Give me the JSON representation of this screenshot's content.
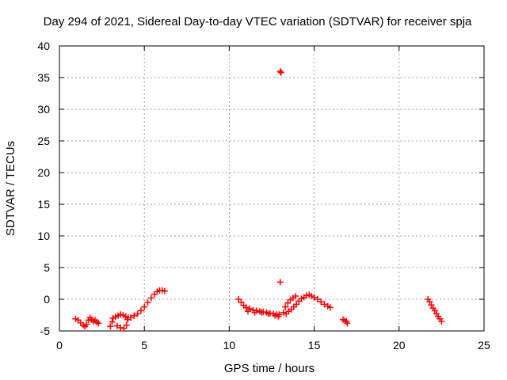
{
  "chart_data": {
    "type": "scatter",
    "title": "Day 294 of 2021, Sidereal Day-to-day VTEC variation (SDTVAR) for receiver spja",
    "xlabel": "GPS time / hours",
    "ylabel": "SDTVAR / TECUs",
    "xlim": [
      0,
      25
    ],
    "ylim": [
      -5,
      40
    ],
    "xticks": [
      "0",
      "5",
      "10",
      "15",
      "20",
      "25"
    ],
    "yticks": [
      "-5",
      "0",
      "5",
      "10",
      "15",
      "20",
      "25",
      "30",
      "35",
      "40"
    ],
    "grid": true,
    "marker_color": "#ff0000",
    "series": [
      {
        "marker": "plus",
        "points": [
          [
            0.95,
            -3.1
          ],
          [
            1.1,
            -3.3
          ],
          [
            1.25,
            -3.7
          ],
          [
            1.4,
            -4.1
          ],
          [
            1.5,
            -4.3
          ],
          [
            1.6,
            -4.0
          ],
          [
            1.7,
            -3.3
          ],
          [
            1.8,
            -2.9
          ],
          [
            1.9,
            -3.2
          ],
          [
            2.0,
            -3.5
          ],
          [
            2.1,
            -3.3
          ],
          [
            2.2,
            -3.6
          ],
          [
            2.3,
            -3.8
          ],
          [
            3.0,
            -4.3
          ],
          [
            3.1,
            -3.6
          ],
          [
            3.15,
            -3.0
          ],
          [
            3.3,
            -2.8
          ],
          [
            3.45,
            -2.6
          ],
          [
            3.6,
            -2.4
          ],
          [
            3.75,
            -2.5
          ],
          [
            3.9,
            -2.7
          ],
          [
            4.05,
            -2.9
          ],
          [
            3.4,
            -4.2
          ],
          [
            3.6,
            -4.5
          ],
          [
            3.8,
            -4.6
          ],
          [
            3.95,
            -4.1
          ],
          [
            4.0,
            -3.2
          ],
          [
            4.2,
            -2.9
          ],
          [
            4.4,
            -2.6
          ],
          [
            4.6,
            -2.3
          ],
          [
            4.8,
            -1.8
          ],
          [
            5.0,
            -1.2
          ],
          [
            5.2,
            -0.5
          ],
          [
            5.4,
            0.2
          ],
          [
            5.6,
            0.8
          ],
          [
            5.75,
            1.2
          ],
          [
            5.9,
            1.4
          ],
          [
            6.05,
            1.4
          ],
          [
            6.2,
            1.3
          ],
          [
            10.55,
            0.0
          ],
          [
            10.7,
            -0.5
          ],
          [
            10.85,
            -1.0
          ],
          [
            11.0,
            -1.3
          ],
          [
            11.2,
            -1.5
          ],
          [
            11.4,
            -1.7
          ],
          [
            11.6,
            -1.8
          ],
          [
            11.8,
            -1.9
          ],
          [
            12.0,
            -2.0
          ],
          [
            12.2,
            -2.1
          ],
          [
            12.4,
            -2.2
          ],
          [
            12.6,
            -2.3
          ],
          [
            12.8,
            -2.4
          ],
          [
            12.95,
            -2.4
          ],
          [
            11.1,
            -1.9
          ],
          [
            11.5,
            -2.1
          ],
          [
            11.9,
            -2.1
          ],
          [
            12.3,
            -2.3
          ],
          [
            12.7,
            -2.6
          ],
          [
            12.9,
            -2.7
          ],
          [
            13.2,
            -2.1
          ],
          [
            13.3,
            -1.2
          ],
          [
            13.45,
            -0.6
          ],
          [
            13.6,
            -0.1
          ],
          [
            13.75,
            0.2
          ],
          [
            13.9,
            0.5
          ],
          [
            13.35,
            -2.3
          ],
          [
            13.5,
            -1.9
          ],
          [
            13.65,
            -1.6
          ],
          [
            13.8,
            -1.2
          ],
          [
            13.95,
            -0.8
          ],
          [
            14.1,
            -0.3
          ],
          [
            14.25,
            0.1
          ],
          [
            14.4,
            0.3
          ],
          [
            14.55,
            0.6
          ],
          [
            14.7,
            0.7
          ],
          [
            14.85,
            0.5
          ],
          [
            15.0,
            0.3
          ],
          [
            15.2,
            0.0
          ],
          [
            15.4,
            -0.4
          ],
          [
            15.6,
            -0.8
          ],
          [
            15.8,
            -1.1
          ],
          [
            15.95,
            -1.3
          ],
          [
            16.7,
            -3.2
          ],
          [
            16.8,
            -3.4
          ],
          [
            16.9,
            -3.5
          ],
          [
            16.95,
            -3.8
          ],
          [
            21.7,
            0.0
          ],
          [
            21.8,
            -0.4
          ],
          [
            21.9,
            -0.9
          ],
          [
            22.0,
            -1.4
          ],
          [
            22.1,
            -1.8
          ],
          [
            22.2,
            -2.3
          ],
          [
            22.3,
            -2.7
          ],
          [
            22.4,
            -3.1
          ],
          [
            22.5,
            -3.5
          ],
          [
            13.0,
            36.0
          ],
          [
            13.05,
            35.8
          ],
          [
            13.0,
            2.7
          ]
        ]
      }
    ]
  }
}
